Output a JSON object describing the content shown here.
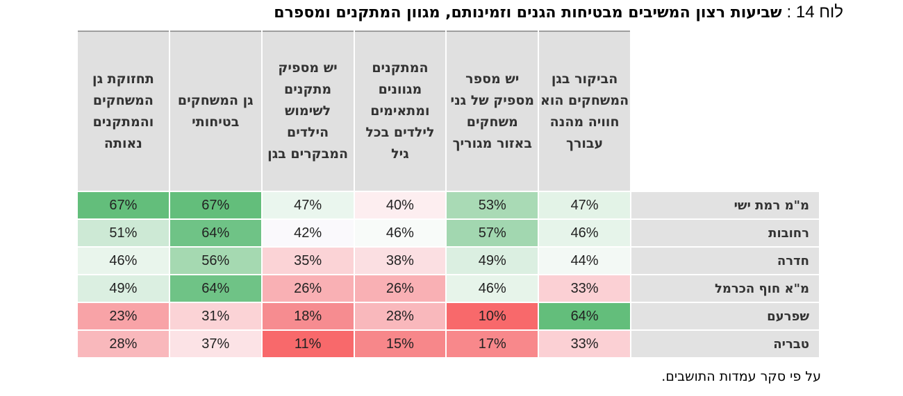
{
  "title": {
    "label": "לוח 14 :",
    "text": "שביעות רצון המשיבים מבטיחות הגנים וזמינותם, מגוון המתקנים ומספרם"
  },
  "columns": [
    "הביקור בגן המשחקים הוא חוויה מהנה עבורך",
    "יש מספר מספיק של גני משחקים באזור מגוריך",
    "המתקנים מגוונים ומתאימים לילדים בכל גיל",
    "יש מספיק מתקנים לשימוש הילדים המבקרים בגן",
    "גן המשחקים בטיחותי",
    "תחזוקת גן המשחקים והמתקנים נאותה"
  ],
  "rows": [
    {
      "label": "מ\"מ רמת ישי",
      "values": [
        "47%",
        "53%",
        "40%",
        "47%",
        "67%",
        "67%"
      ],
      "colors": [
        "#e3f3e7",
        "#a9dab5",
        "#fdeef0",
        "#eaf6ee",
        "#63be7b",
        "#63be7b"
      ]
    },
    {
      "label": "רחובות",
      "values": [
        "46%",
        "57%",
        "46%",
        "42%",
        "64%",
        "51%"
      ],
      "colors": [
        "#e6f4ea",
        "#a2d7b0",
        "#f8fbf9",
        "#faf9fc",
        "#6fc386",
        "#cde9d5"
      ]
    },
    {
      "label": "חדרה",
      "values": [
        "44%",
        "49%",
        "38%",
        "35%",
        "56%",
        "46%"
      ],
      "colors": [
        "#f3f9f5",
        "#dbefe1",
        "#fbdfe2",
        "#fbd3d6",
        "#a5d9b1",
        "#e9f5ec"
      ]
    },
    {
      "label": "מ\"א חוף הכרמל",
      "values": [
        "33%",
        "46%",
        "26%",
        "26%",
        "64%",
        "49%"
      ],
      "colors": [
        "#fbd0d4",
        "#e7f4ea",
        "#f9b0b4",
        "#f9b0b4",
        "#6fc386",
        "#dbefe1"
      ]
    },
    {
      "label": "שפרעם",
      "values": [
        "64%",
        "10%",
        "28%",
        "18%",
        "31%",
        "23%"
      ],
      "colors": [
        "#63be7b",
        "#f8696b",
        "#f9b8bc",
        "#f68c90",
        "#fbd3d6",
        "#f8a3a7"
      ]
    },
    {
      "label": "טבריה",
      "values": [
        "33%",
        "17%",
        "15%",
        "11%",
        "37%",
        "28%"
      ],
      "colors": [
        "#fbd0d4",
        "#f8888b",
        "#f7878a",
        "#f8696b",
        "#fce3e6",
        "#f9b8bc"
      ]
    }
  ],
  "source": "על פי סקר עמדות התושבים."
}
